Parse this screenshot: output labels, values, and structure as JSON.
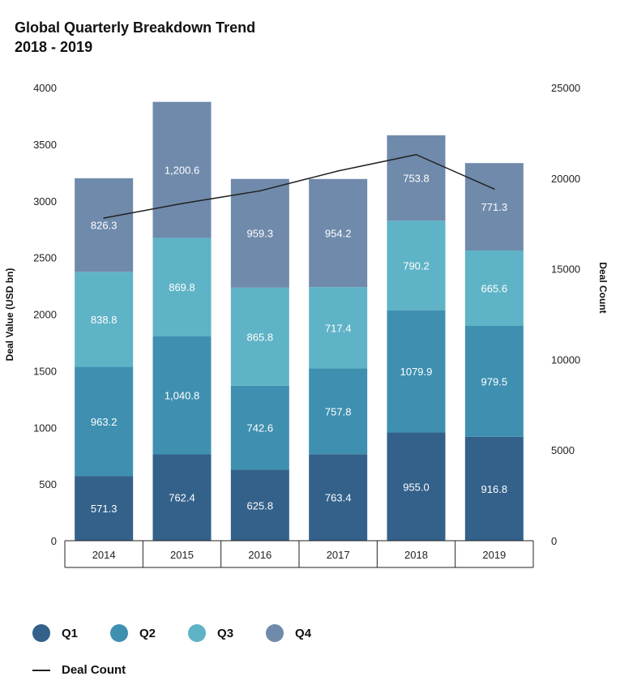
{
  "chart_data": {
    "type": "bar",
    "stacked": true,
    "title": "Global Quarterly Breakdown Trend",
    "subtitle": "2018 - 2019",
    "categories": [
      "2014",
      "2015",
      "2016",
      "2017",
      "2018",
      "2019"
    ],
    "ylabel": "Deal Value (USD bn)",
    "y2label": "Deal Count",
    "ylim": [
      0,
      4000
    ],
    "y2lim": [
      0,
      25000
    ],
    "yticks": [
      "0",
      "500",
      "1000",
      "1500",
      "2000",
      "2500",
      "3000",
      "3500",
      "4000"
    ],
    "y2ticks": [
      "0",
      "5000",
      "10000",
      "15000",
      "20000",
      "25000"
    ],
    "series": [
      {
        "name": "Q1",
        "color": "#33618a",
        "values": [
          571.3,
          762.4,
          625.8,
          763.4,
          955.0,
          916.8
        ],
        "labels": [
          "571.3",
          "762.4",
          "625.8",
          "763.4",
          "955.0",
          "916.8"
        ]
      },
      {
        "name": "Q2",
        "color": "#3f90b0",
        "values": [
          963.2,
          1040.8,
          742.6,
          757.8,
          1079.9,
          979.5
        ],
        "labels": [
          "963.2",
          "1,040.8",
          "742.6",
          "757.8",
          "1079.9",
          "979.5"
        ]
      },
      {
        "name": "Q3",
        "color": "#5fb3c6",
        "values": [
          838.8,
          869.8,
          865.8,
          717.4,
          790.2,
          665.6
        ],
        "labels": [
          "838.8",
          "869.8",
          "865.8",
          "717.4",
          "790.2",
          "665.6"
        ]
      },
      {
        "name": "Q4",
        "color": "#6f8aab",
        "values": [
          826.3,
          1200.6,
          959.3,
          954.2,
          753.8,
          771.3
        ],
        "labels": [
          "826.3",
          "1,200.6",
          "959.3",
          "954.2",
          "753.8",
          "771.3"
        ]
      }
    ],
    "line": {
      "name": "Deal Count",
      "axis": "right",
      "color": "#222222",
      "values": [
        17800,
        18600,
        19300,
        20400,
        21300,
        19400
      ]
    },
    "legend": "bottom-left"
  }
}
